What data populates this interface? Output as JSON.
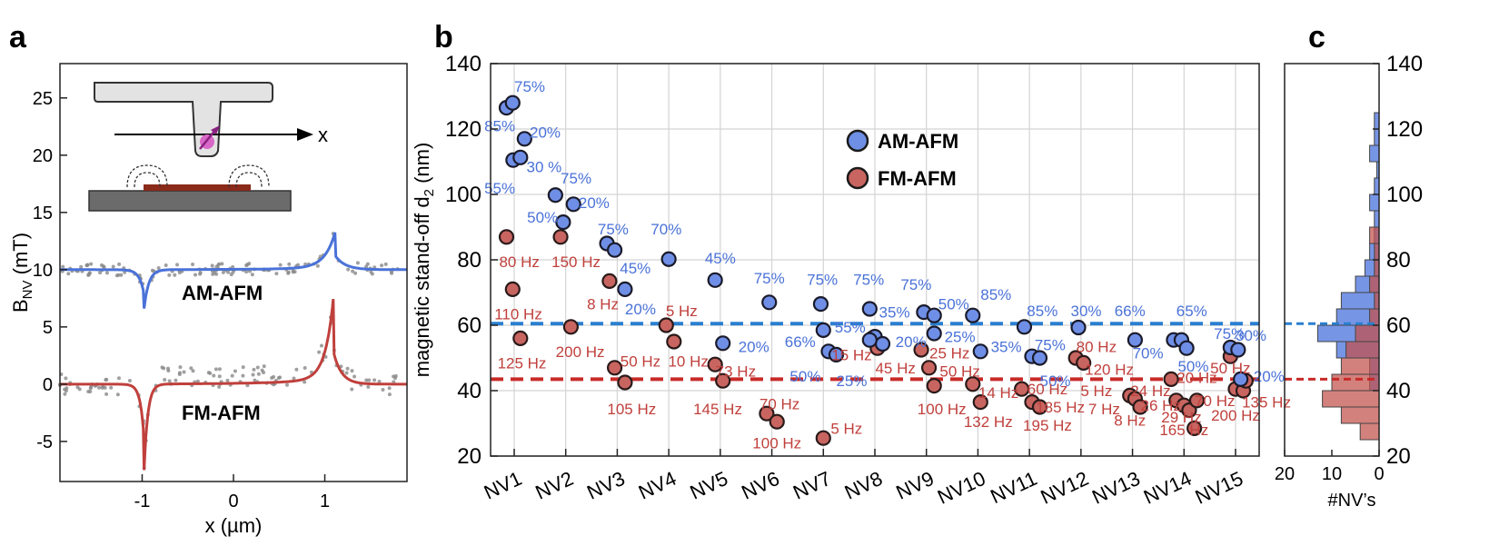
{
  "colors": {
    "am": "#4a72d8",
    "fm": "#c0403c",
    "am_line": "#2a7fd0",
    "fm_line": "#c82a28",
    "grid": "#d4d4d4",
    "data_dot": "#888888"
  },
  "chart_data": [
    {
      "panel": "a",
      "type": "line",
      "xlabel": "x (µm)",
      "ylabel_main": "B",
      "ylabel_sub": "NV",
      "ylabel_unit": " (mT)",
      "xlim": [
        -1.9,
        1.9
      ],
      "ylim": [
        -8.5,
        28
      ],
      "xticks": [
        -1,
        0,
        1
      ],
      "yticks": [
        -5,
        0,
        5,
        10,
        15,
        20,
        25
      ],
      "series": [
        {
          "name": "AM-AFM",
          "color": "#4a72d8",
          "baseline": 10,
          "dip_x": -0.98,
          "dip_depth": 3.5,
          "peak_x": 1.12,
          "peak_height": 3.3,
          "width": 0.05
        },
        {
          "name": "FM-AFM",
          "color": "#c0403c",
          "baseline": 0,
          "dip_x": -0.98,
          "dip_depth": 7.8,
          "peak_x": 1.1,
          "peak_height": 7.6,
          "width": 0.04
        }
      ],
      "inset_label": "x"
    },
    {
      "panel": "b",
      "type": "scatter",
      "ylabel_main": "magnetic stand-off d",
      "ylabel_sub": "2",
      "ylabel_unit": " (nm)",
      "categories": [
        "NV1",
        "NV2",
        "NV3",
        "NV4",
        "NV5",
        "NV6",
        "NV7",
        "NV8",
        "NV9",
        "NV10",
        "NV11",
        "NV12",
        "NV13",
        "NV14",
        "NV15"
      ],
      "ylim": [
        20,
        140
      ],
      "yticks": [
        20,
        40,
        60,
        80,
        100,
        120,
        140
      ],
      "legend": [
        "AM-AFM",
        "FM-AFM"
      ],
      "legend_position": "top-center",
      "am_mean": 60.5,
      "fm_mean": 43.5,
      "am_points": [
        {
          "x": 0.85,
          "y": 126.5,
          "label": "85%",
          "lx": 0.72,
          "ly": 121
        },
        {
          "x": 0.97,
          "y": 128,
          "label": "75%",
          "lx": 1.3,
          "ly": 133
        },
        {
          "x": 1.2,
          "y": 117,
          "label": "20%",
          "lx": 1.6,
          "ly": 119
        },
        {
          "x": 0.98,
          "y": 110.5,
          "label": "55%",
          "lx": 0.72,
          "ly": 102
        },
        {
          "x": 1.12,
          "y": 111.3,
          "label": "30 %",
          "lx": 1.58,
          "ly": 108.5
        },
        {
          "x": 1.8,
          "y": 99.8,
          "label": "75%",
          "lx": 2.2,
          "ly": 105
        },
        {
          "x": 2.15,
          "y": 97,
          "label": "20%",
          "lx": 2.55,
          "ly": 97.5
        },
        {
          "x": 1.95,
          "y": 91.5,
          "label": "50%",
          "lx": 1.55,
          "ly": 93
        },
        {
          "x": 2.8,
          "y": 85,
          "label": "75%",
          "lx": 2.92,
          "ly": 89.5
        },
        {
          "x": 2.95,
          "y": 83,
          "label": "45%",
          "lx": 3.35,
          "ly": 77.5
        },
        {
          "x": 3.15,
          "y": 71,
          "label": "20%",
          "lx": 3.45,
          "ly": 65
        },
        {
          "x": 4,
          "y": 80.2,
          "label": "70%",
          "lx": 3.95,
          "ly": 89.5
        },
        {
          "x": 4.9,
          "y": 73.8,
          "label": "45%",
          "lx": 5,
          "ly": 80.5
        },
        {
          "x": 5.05,
          "y": 54.5,
          "label": "20%",
          "lx": 5.65,
          "ly": 53.5
        },
        {
          "x": 5.95,
          "y": 67,
          "label": "75%",
          "lx": 5.95,
          "ly": 74.5
        },
        {
          "x": 6.95,
          "y": 66.5,
          "label": "75%",
          "lx": 6.98,
          "ly": 74
        },
        {
          "x": 7,
          "y": 58.5,
          "label": "66%",
          "lx": 6.55,
          "ly": 55
        },
        {
          "x": 7.1,
          "y": 52,
          "label": "50%",
          "lx": 6.65,
          "ly": 44.5
        },
        {
          "x": 7.25,
          "y": 51,
          "label": "25%",
          "lx": 7.55,
          "ly": 43
        },
        {
          "x": 7.9,
          "y": 65,
          "label": "75%",
          "lx": 7.88,
          "ly": 74
        },
        {
          "x": 8.0,
          "y": 56.5,
          "label": "55%",
          "lx": 7.52,
          "ly": 59.5
        },
        {
          "x": 8.15,
          "y": 54.3,
          "label": "35%",
          "lx": 8.38,
          "ly": 64
        },
        {
          "x": 7.9,
          "y": 55.5,
          "label": "20%",
          "lx": 8.7,
          "ly": 55
        },
        {
          "x": 8.95,
          "y": 64,
          "label": "75%",
          "lx": 8.8,
          "ly": 72.5
        },
        {
          "x": 9.15,
          "y": 63,
          "label": "50%",
          "lx": 9.53,
          "ly": 66.5
        },
        {
          "x": 9.15,
          "y": 57.5,
          "label": "25%",
          "lx": 9.65,
          "ly": 56.5
        },
        {
          "x": 9.9,
          "y": 63,
          "label": "85%",
          "lx": 10.35,
          "ly": 69.5
        },
        {
          "x": 10.05,
          "y": 52,
          "label": "35%",
          "lx": 10.55,
          "ly": 53.5
        },
        {
          "x": 10.9,
          "y": 59.5,
          "label": "85%",
          "lx": 11.25,
          "ly": 64.5
        },
        {
          "x": 11.05,
          "y": 50.5,
          "label": "75%",
          "lx": 11.4,
          "ly": 54
        },
        {
          "x": 11.2,
          "y": 50,
          "label": "50%",
          "lx": 11.5,
          "ly": 43
        },
        {
          "x": 11.95,
          "y": 59.3,
          "label": "30%",
          "lx": 12.1,
          "ly": 64.5
        },
        {
          "x": 13.05,
          "y": 55.5,
          "label": "66%",
          "lx": 12.95,
          "ly": 64.5
        },
        {
          "x": 13.8,
          "y": 55.5,
          "label": "70%",
          "lx": 13.3,
          "ly": 51.5
        },
        {
          "x": 13.95,
          "y": 55.5,
          "label": "65%",
          "lx": 14.15,
          "ly": 64.5
        },
        {
          "x": 14.05,
          "y": 53,
          "label": "50%",
          "lx": 14.18,
          "ly": 47.5
        },
        {
          "x": 14.9,
          "y": 53.2,
          "label": "75%",
          "lx": 14.88,
          "ly": 57.5
        },
        {
          "x": 15.05,
          "y": 52.5,
          "label": "30%",
          "lx": 15.3,
          "ly": 57
        },
        {
          "x": 15.1,
          "y": 43.5,
          "label": "20%",
          "lx": 15.65,
          "ly": 44.5
        }
      ],
      "fm_points": [
        {
          "x": 0.85,
          "y": 87,
          "label": "80 Hz",
          "lx": 1.1,
          "ly": 79.5
        },
        {
          "x": 0.97,
          "y": 71,
          "label": "110 Hz",
          "lx": 1.08,
          "ly": 63.5
        },
        {
          "x": 1.12,
          "y": 56,
          "label": "125 Hz",
          "lx": 1.15,
          "ly": 48.5
        },
        {
          "x": 1.9,
          "y": 87,
          "label": "150 Hz",
          "lx": 2.2,
          "ly": 79.5
        },
        {
          "x": 2.1,
          "y": 59.5,
          "label": "200 Hz",
          "lx": 2.28,
          "ly": 52
        },
        {
          "x": 2.85,
          "y": 73.5,
          "label": "8 Hz",
          "lx": 2.72,
          "ly": 66.5
        },
        {
          "x": 2.95,
          "y": 47,
          "label": "50 Hz",
          "lx": 3.45,
          "ly": 49
        },
        {
          "x": 3.15,
          "y": 42.5,
          "label": "105 Hz",
          "lx": 3.28,
          "ly": 34.5
        },
        {
          "x": 3.95,
          "y": 60,
          "label": "5 Hz",
          "lx": 4.25,
          "ly": 64.5
        },
        {
          "x": 4.1,
          "y": 55,
          "label": "10 Hz",
          "lx": 4.38,
          "ly": 49
        },
        {
          "x": 4.9,
          "y": 48,
          "label": "73 Hz",
          "lx": 5.3,
          "ly": 46
        },
        {
          "x": 5.05,
          "y": 43,
          "label": "145 Hz",
          "lx": 4.95,
          "ly": 34.5
        },
        {
          "x": 5.9,
          "y": 33,
          "label": "70 Hz",
          "lx": 6.15,
          "ly": 36
        },
        {
          "x": 6.1,
          "y": 30.5,
          "label": "100 Hz",
          "lx": 6.1,
          "ly": 24
        },
        {
          "x": 7,
          "y": 25.5,
          "label": "5 Hz",
          "lx": 7.45,
          "ly": 28.5
        },
        {
          "x": 7.95,
          "y": 56,
          "label": "15 Hz",
          "lx": 7.55,
          "ly": 51
        },
        {
          "x": 8.05,
          "y": 53,
          "label": "45 Hz",
          "lx": 8.4,
          "ly": 47
        },
        {
          "x": 8.9,
          "y": 52.5,
          "label": "25 Hz",
          "lx": 9.45,
          "ly": 51.5
        },
        {
          "x": 9.05,
          "y": 47,
          "label": "50 Hz",
          "lx": 9.65,
          "ly": 46
        },
        {
          "x": 9.15,
          "y": 41.5,
          "label": "100 Hz",
          "lx": 9.3,
          "ly": 34.5
        },
        {
          "x": 9.9,
          "y": 42,
          "label": "14 Hz",
          "lx": 10.4,
          "ly": 39.5
        },
        {
          "x": 10.05,
          "y": 36.5,
          "label": "132 Hz",
          "lx": 10.2,
          "ly": 30.5
        },
        {
          "x": 10.85,
          "y": 40.5,
          "label": "60 Hz",
          "lx": 11.35,
          "ly": 40.5
        },
        {
          "x": 11.05,
          "y": 36.5,
          "label": "185 Hz",
          "lx": 11.6,
          "ly": 35
        },
        {
          "x": 11.2,
          "y": 35,
          "label": "195 Hz",
          "lx": 11.35,
          "ly": 29.5
        },
        {
          "x": 11.9,
          "y": 50,
          "label": "80 Hz",
          "lx": 12.3,
          "ly": 53.5
        },
        {
          "x": 12.05,
          "y": 48.5,
          "label": "120 Hz",
          "lx": 12.55,
          "ly": 46.5
        },
        {
          "x": 12.95,
          "y": 38.5,
          "label": "5 Hz",
          "lx": 12.3,
          "ly": 40
        },
        {
          "x": 13.05,
          "y": 37.5,
          "label": "7 Hz",
          "lx": 12.45,
          "ly": 34.5
        },
        {
          "x": 13.15,
          "y": 35,
          "label": "8 Hz",
          "lx": 12.95,
          "ly": 31
        },
        {
          "x": 13.75,
          "y": 43.5,
          "label": "24 Hz",
          "lx": 13.35,
          "ly": 40
        },
        {
          "x": 13.85,
          "y": 37,
          "label": "26 Hz",
          "lx": 13.55,
          "ly": 35.5
        },
        {
          "x": 14,
          "y": 35.5,
          "label": "29 Hz",
          "lx": 13.95,
          "ly": 32
        },
        {
          "x": 14.1,
          "y": 34,
          "label": "165 Hz",
          "lx": 14.0,
          "ly": 28
        },
        {
          "x": 14.2,
          "y": 28.5,
          "label": "20 Hz",
          "lx": 14.25,
          "ly": 44
        },
        {
          "x": 14.25,
          "y": 37,
          "label": "70 Hz",
          "lx": 14.6,
          "ly": 37
        },
        {
          "x": 14.9,
          "y": 50.5,
          "label": "50 Hz",
          "lx": 14.9,
          "ly": 47
        },
        {
          "x": 15.0,
          "y": 40.5,
          "label": "135 Hz",
          "lx": 15.6,
          "ly": 36.5
        },
        {
          "x": 15.15,
          "y": 40,
          "label": "200 Hz",
          "lx": 15.0,
          "ly": 32.5
        },
        {
          "x": 15.2,
          "y": 43,
          "label": "",
          "lx": 0,
          "ly": 0
        }
      ]
    },
    {
      "panel": "c",
      "type": "bar",
      "orientation": "horizontal",
      "xlabel": "#NV’s",
      "xlim": [
        20,
        0
      ],
      "xticks": [
        20,
        10,
        0
      ],
      "ylim": [
        20,
        140
      ],
      "yticks": [
        20,
        40,
        60,
        80,
        100,
        120,
        140
      ],
      "bin_width": 5,
      "am_bins": [
        {
          "y0": 120,
          "y1": 125,
          "count": 1
        },
        {
          "y0": 115,
          "y1": 120,
          "count": 1
        },
        {
          "y0": 110,
          "y1": 115,
          "count": 2
        },
        {
          "y0": 105,
          "y1": 110,
          "count": 0.5
        },
        {
          "y0": 100,
          "y1": 105,
          "count": 1
        },
        {
          "y0": 95,
          "y1": 100,
          "count": 2
        },
        {
          "y0": 90,
          "y1": 95,
          "count": 1
        },
        {
          "y0": 85,
          "y1": 90,
          "count": 1
        },
        {
          "y0": 80,
          "y1": 85,
          "count": 2
        },
        {
          "y0": 75,
          "y1": 80,
          "count": 3
        },
        {
          "y0": 70,
          "y1": 75,
          "count": 5
        },
        {
          "y0": 65,
          "y1": 70,
          "count": 8
        },
        {
          "y0": 60,
          "y1": 65,
          "count": 9
        },
        {
          "y0": 55,
          "y1": 60,
          "count": 13
        },
        {
          "y0": 50,
          "y1": 55,
          "count": 9
        },
        {
          "y0": 45,
          "y1": 50,
          "count": 2
        },
        {
          "y0": 40,
          "y1": 45,
          "count": 2
        }
      ],
      "fm_bins": [
        {
          "y0": 85,
          "y1": 90,
          "count": 2
        },
        {
          "y0": 80,
          "y1": 85,
          "count": 1
        },
        {
          "y0": 75,
          "y1": 80,
          "count": 1
        },
        {
          "y0": 70,
          "y1": 75,
          "count": 2
        },
        {
          "y0": 65,
          "y1": 70,
          "count": 1
        },
        {
          "y0": 60,
          "y1": 65,
          "count": 2
        },
        {
          "y0": 55,
          "y1": 60,
          "count": 5
        },
        {
          "y0": 50,
          "y1": 55,
          "count": 7
        },
        {
          "y0": 45,
          "y1": 50,
          "count": 8
        },
        {
          "y0": 40,
          "y1": 45,
          "count": 10
        },
        {
          "y0": 35,
          "y1": 40,
          "count": 12
        },
        {
          "y0": 30,
          "y1": 35,
          "count": 8
        },
        {
          "y0": 25,
          "y1": 30,
          "count": 4
        }
      ],
      "am_mean": 60.5,
      "fm_mean": 43.5
    }
  ],
  "panel_labels": {
    "a": "a",
    "b": "b",
    "c": "c"
  },
  "inset": {
    "am_label": "AM-AFM",
    "fm_label": "FM-AFM"
  }
}
